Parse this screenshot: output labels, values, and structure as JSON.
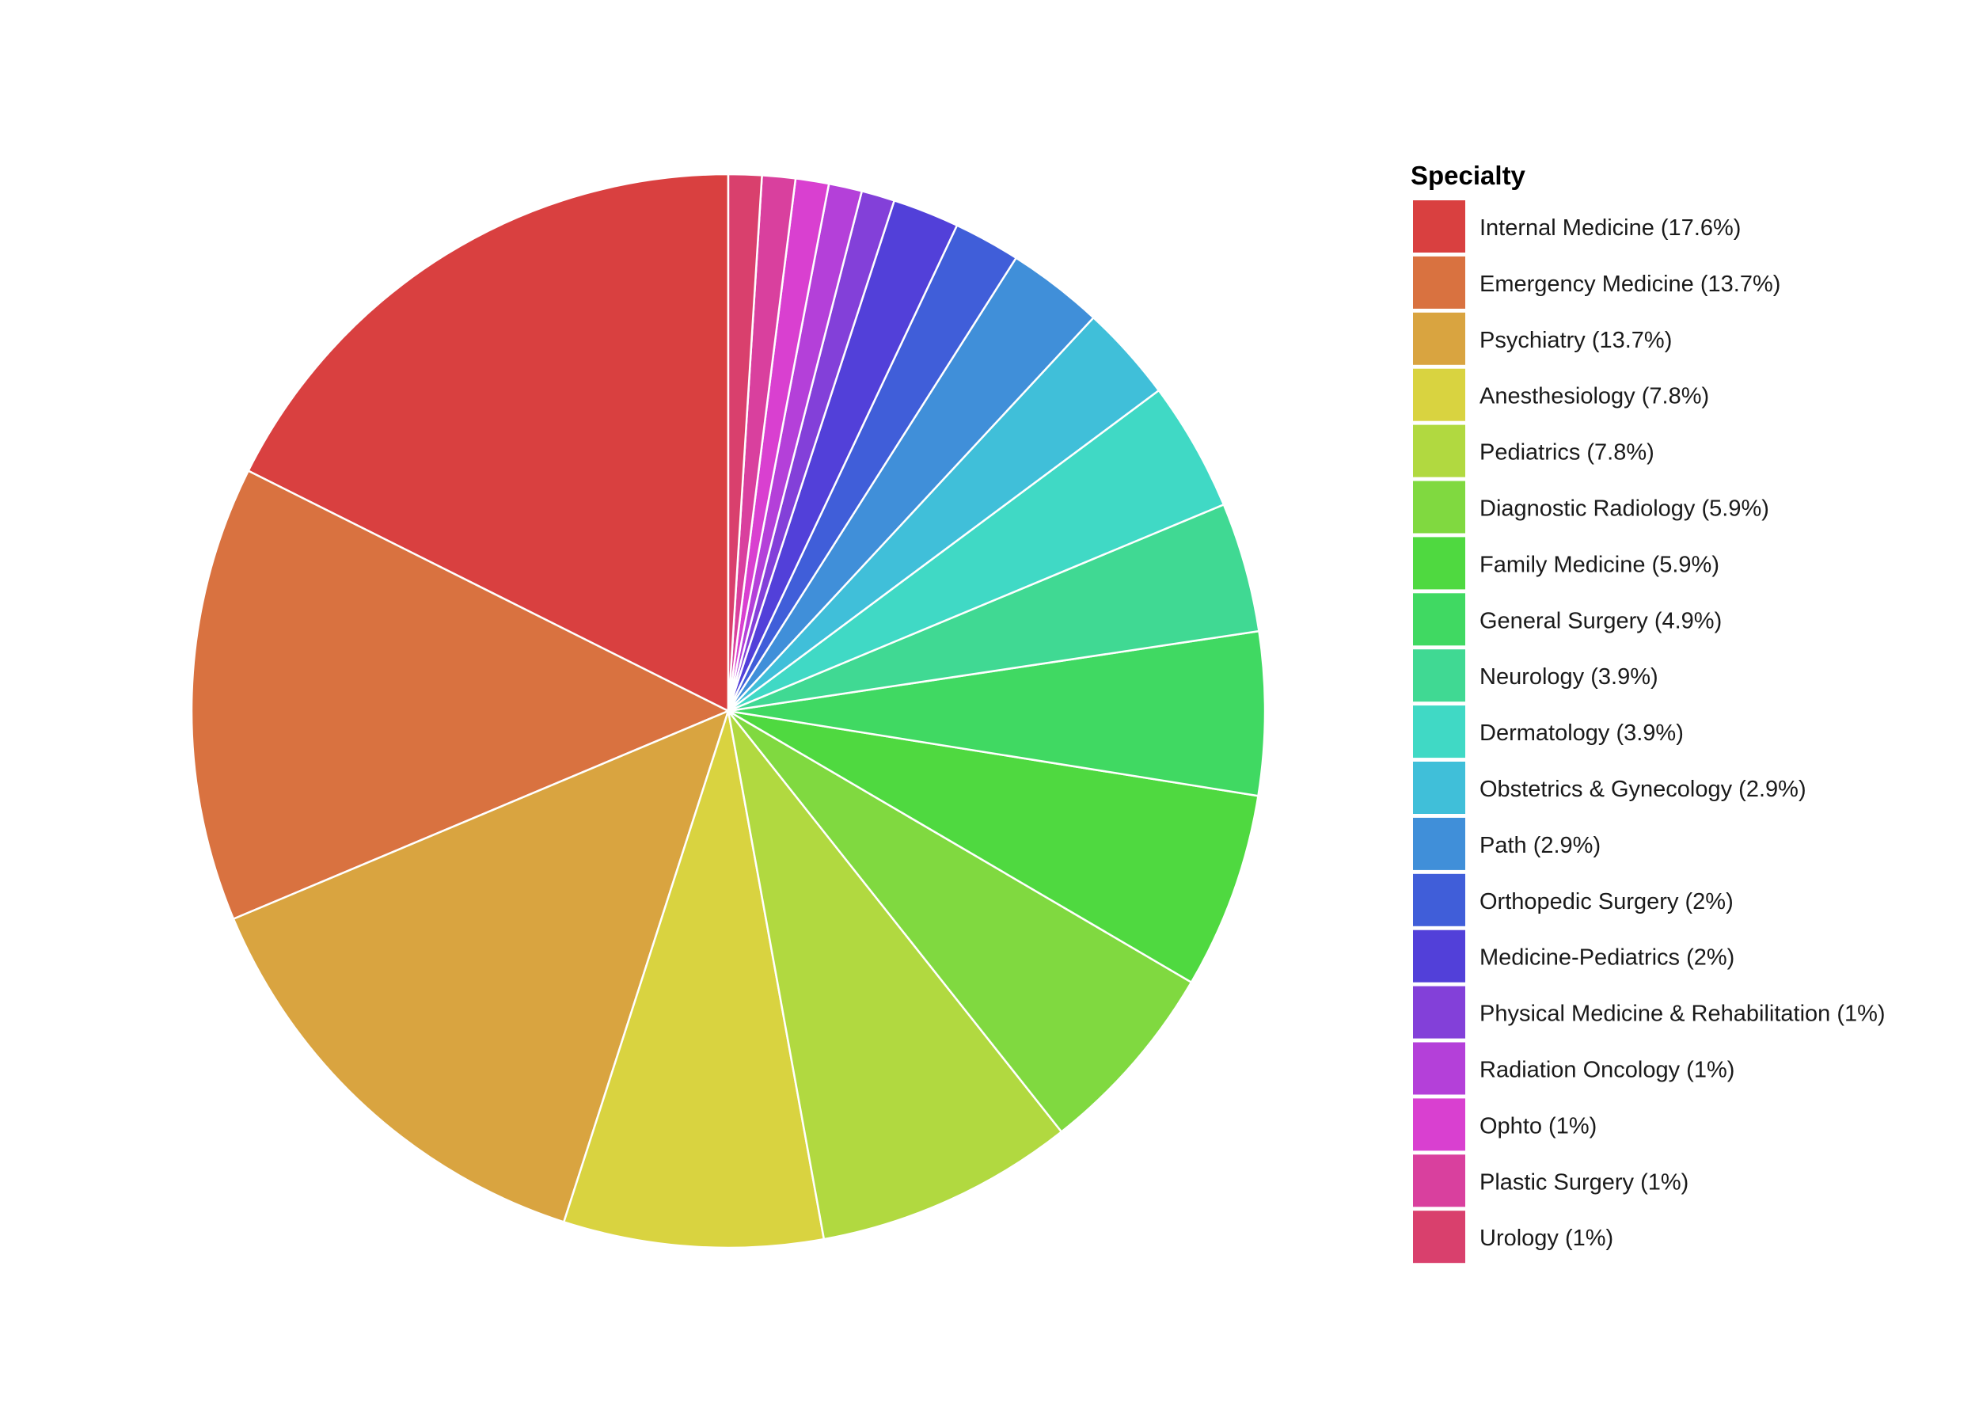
{
  "chart_data": {
    "type": "pie",
    "legend_title": "Specialty",
    "legend_position": "right",
    "start": "12 o'clock",
    "direction": "counterclockwise",
    "slices": [
      {
        "label": "Internal Medicine (17.6%)",
        "value": 17.6,
        "color": "#d94040"
      },
      {
        "label": "Emergency Medicine (13.7%)",
        "value": 13.7,
        "color": "#d97240"
      },
      {
        "label": "Psychiatry (13.7%)",
        "value": 13.7,
        "color": "#d9a440"
      },
      {
        "label": "Anesthesiology (7.8%)",
        "value": 7.8,
        "color": "#d9d340"
      },
      {
        "label": "Pediatrics (7.8%)",
        "value": 7.8,
        "color": "#b1d940"
      },
      {
        "label": "Diagnostic Radiology (5.9%)",
        "value": 5.9,
        "color": "#80d940"
      },
      {
        "label": "Family Medicine (5.9%)",
        "value": 5.9,
        "color": "#4fd940"
      },
      {
        "label": "General Surgery (4.9%)",
        "value": 4.9,
        "color": "#40d962"
      },
      {
        "label": "Neurology (3.9%)",
        "value": 3.9,
        "color": "#40d993"
      },
      {
        "label": "Dermatology (3.9%)",
        "value": 3.9,
        "color": "#40d9c5"
      },
      {
        "label": "Obstetrics & Gynecology (2.9%)",
        "value": 2.9,
        "color": "#40bfd9"
      },
      {
        "label": "Path (2.9%)",
        "value": 2.9,
        "color": "#408fd9"
      },
      {
        "label": "Orthopedic Surgery (2%)",
        "value": 2.0,
        "color": "#405ed9"
      },
      {
        "label": "Medicine-Pediatrics (2%)",
        "value": 2.0,
        "color": "#5240d9"
      },
      {
        "label": "Physical Medicine & Rehabilitation (1%)",
        "value": 1.0,
        "color": "#8340d9"
      },
      {
        "label": "Radiation Oncology (1%)",
        "value": 1.0,
        "color": "#b440d9"
      },
      {
        "label": "Ophto (1%)",
        "value": 1.0,
        "color": "#d940d0"
      },
      {
        "label": "Plastic Surgery (1%)",
        "value": 1.0,
        "color": "#d9409e"
      },
      {
        "label": "Urology (1%)",
        "value": 1.0,
        "color": "#d9406d"
      }
    ]
  }
}
